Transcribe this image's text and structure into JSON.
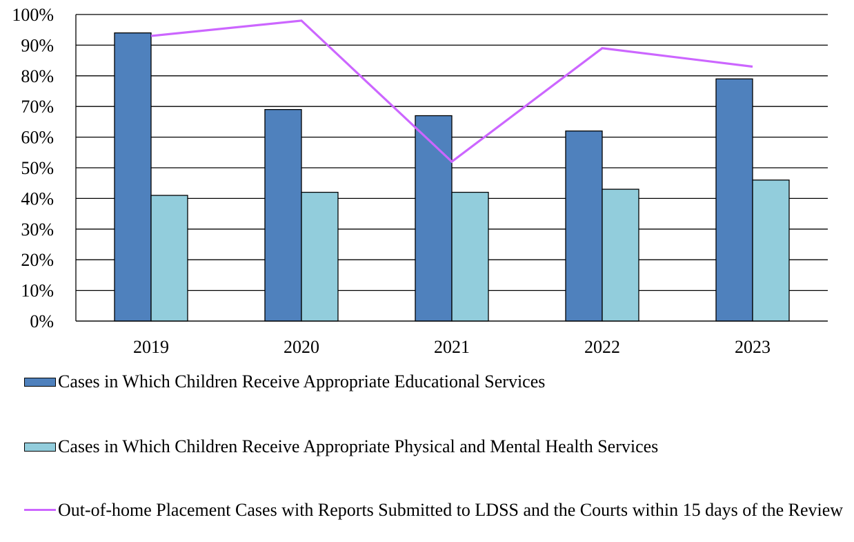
{
  "chart_data": {
    "type": "bar",
    "categories": [
      "2019",
      "2020",
      "2021",
      "2022",
      "2023"
    ],
    "series": [
      {
        "name": "Cases in Which Children Receive Appropriate Educational Services",
        "kind": "bar",
        "color": "#4F81BD",
        "values": [
          94,
          69,
          67,
          62,
          79
        ]
      },
      {
        "name": "Cases in Which Children Receive Appropriate Physical and Mental Health Services",
        "kind": "bar",
        "color": "#92CDDC",
        "values": [
          41,
          42,
          42,
          43,
          46
        ]
      },
      {
        "name": "Out-of-home Placement Cases with Reports Submitted to LDSS and the Courts within 15 days of the Review",
        "kind": "line",
        "color": "#CC66FF",
        "values": [
          93,
          98,
          52,
          89,
          83
        ]
      }
    ],
    "y_ticks": [
      "0%",
      "10%",
      "20%",
      "30%",
      "40%",
      "50%",
      "60%",
      "70%",
      "80%",
      "90%",
      "100%"
    ],
    "ylim": [
      0,
      100
    ],
    "grid": true,
    "legend_position": "bottom"
  }
}
